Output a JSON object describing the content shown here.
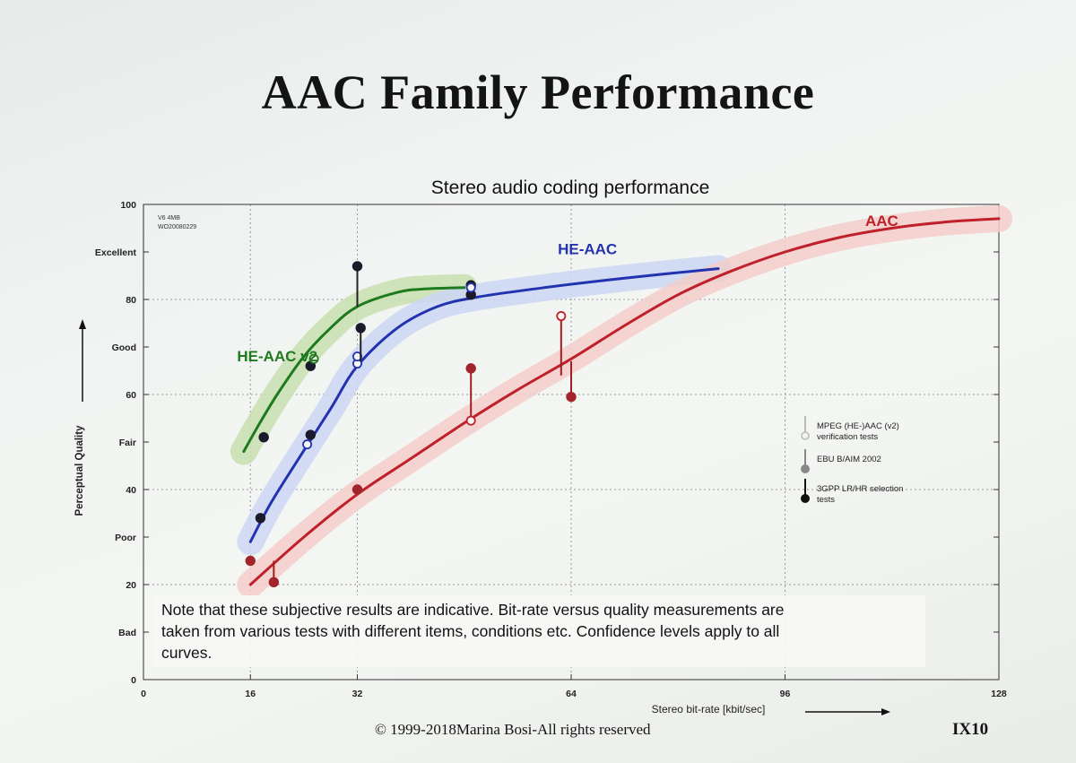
{
  "slide": {
    "title": "AAC Family Performance",
    "copyright": "© 1999-2018Marina Bosi-All rights reserved",
    "slide_number": "IX10"
  },
  "chart_data": {
    "type": "line",
    "title": "Stereo audio coding performance",
    "xlabel": "Stereo bit-rate [kbit/sec]",
    "ylabel": "Perceptual Quality",
    "xlim": [
      0,
      128
    ],
    "ylim": [
      0,
      100
    ],
    "x_ticks": [
      0,
      16,
      32,
      64,
      96,
      128
    ],
    "y_ticks": [
      {
        "value": 100,
        "label": "100"
      },
      {
        "value": 90,
        "label": "Excellent"
      },
      {
        "value": 80,
        "label": "80"
      },
      {
        "value": 70,
        "label": "Good"
      },
      {
        "value": 60,
        "label": "60"
      },
      {
        "value": 50,
        "label": "Fair"
      },
      {
        "value": 40,
        "label": "40"
      },
      {
        "value": 30,
        "label": "Poor"
      },
      {
        "value": 20,
        "label": "20"
      },
      {
        "value": 10,
        "label": "Bad"
      },
      {
        "value": 0,
        "label": "0"
      }
    ],
    "grid": true,
    "corner_note": [
      "V6 4MB",
      "WO20080229"
    ],
    "series": [
      {
        "name": "HE-AAC v2",
        "color": "#1f7a1f",
        "halo": "#c8dfb0",
        "curve": [
          [
            15,
            48
          ],
          [
            17,
            53
          ],
          [
            20,
            60
          ],
          [
            24,
            68
          ],
          [
            28,
            74
          ],
          [
            32,
            78.5
          ],
          [
            38,
            81.5
          ],
          [
            42,
            82.2
          ],
          [
            48,
            82.5
          ]
        ],
        "points": [
          {
            "x": 18,
            "y": 51,
            "style": "filled"
          },
          {
            "x": 25,
            "y": 66,
            "style": "filled"
          },
          {
            "x": 25.5,
            "y": 67.5,
            "style": "open"
          },
          {
            "x": 32,
            "y": 87,
            "style": "filled",
            "stem_to": 78.5
          },
          {
            "x": 49,
            "y": 83,
            "style": "filled"
          }
        ]
      },
      {
        "name": "HE-AAC",
        "color": "#2233b0",
        "halo": "#cdd6f4",
        "curve": [
          [
            16,
            29
          ],
          [
            19,
            37
          ],
          [
            23,
            46
          ],
          [
            28,
            57
          ],
          [
            32,
            66
          ],
          [
            38,
            74
          ],
          [
            44,
            78.5
          ],
          [
            50,
            80.5
          ],
          [
            60,
            82.5
          ],
          [
            72,
            84.5
          ],
          [
            86,
            86.5
          ]
        ],
        "points": [
          {
            "x": 17.5,
            "y": 34,
            "style": "filled"
          },
          {
            "x": 25,
            "y": 51.5,
            "style": "filled"
          },
          {
            "x": 24.5,
            "y": 49.5,
            "style": "open"
          },
          {
            "x": 32,
            "y": 66.5,
            "style": "open"
          },
          {
            "x": 32,
            "y": 68,
            "style": "open"
          },
          {
            "x": 32.5,
            "y": 74,
            "style": "filled",
            "stem_to": 67
          },
          {
            "x": 49,
            "y": 81,
            "style": "filled"
          },
          {
            "x": 49,
            "y": 82.5,
            "style": "open"
          }
        ]
      },
      {
        "name": "AAC",
        "color": "#c0202a",
        "halo": "#f3cdc9",
        "curve": [
          [
            16,
            20
          ],
          [
            24,
            30
          ],
          [
            32,
            39
          ],
          [
            40,
            46.5
          ],
          [
            48,
            54
          ],
          [
            56,
            61
          ],
          [
            64,
            67.5
          ],
          [
            72,
            74.5
          ],
          [
            80,
            81
          ],
          [
            88,
            86
          ],
          [
            96,
            90
          ],
          [
            104,
            93
          ],
          [
            112,
            95
          ],
          [
            120,
            96.3
          ],
          [
            128,
            97
          ]
        ],
        "points": [
          {
            "x": 16,
            "y": 25,
            "style": "filled"
          },
          {
            "x": 19.5,
            "y": 20.5,
            "style": "filled",
            "stem_to": 25
          },
          {
            "x": 32,
            "y": 40,
            "style": "filled"
          },
          {
            "x": 49,
            "y": 65.5,
            "style": "filled",
            "stem_to": 54.5
          },
          {
            "x": 49,
            "y": 54.5,
            "style": "open"
          },
          {
            "x": 62.5,
            "y": 76.5,
            "style": "open",
            "stem_to": 64
          },
          {
            "x": 64,
            "y": 59.5,
            "style": "filled",
            "stem_to": 67
          }
        ]
      }
    ],
    "series_labels": [
      {
        "name": "HE-AAC v2",
        "x": 14,
        "y": 67
      },
      {
        "name": "HE-AAC",
        "x": 62,
        "y": 89.5
      },
      {
        "name": "AAC",
        "x": 108,
        "y": 95.5
      }
    ],
    "legend": {
      "placement": "right",
      "entries": [
        {
          "label": "MPEG (HE-)AAC (v2) verification tests",
          "lines": [
            "MPEG (HE-)AAC (v2)",
            "verification tests"
          ],
          "marker": "open",
          "color": "#bbbbbb"
        },
        {
          "label": "EBU B/AIM 2002",
          "lines": [
            "EBU B/AIM 2002"
          ],
          "marker": "filled",
          "color": "#888888"
        },
        {
          "label": "3GPP LR/HR selection tests",
          "lines": [
            "3GPP LR/HR selection",
            "tests"
          ],
          "marker": "filled",
          "color": "#111111"
        }
      ]
    },
    "note": "Note that these subjective results are indicative. Bit-rate versus quality measurements are taken from various tests with different items, conditions etc. Confidence levels apply to all curves.",
    "note_lines": [
      "Note that these subjective results are indicative. Bit-rate versus quality measurements are",
      "taken from various tests with different items, conditions etc. Confidence levels apply to all",
      "curves."
    ]
  }
}
